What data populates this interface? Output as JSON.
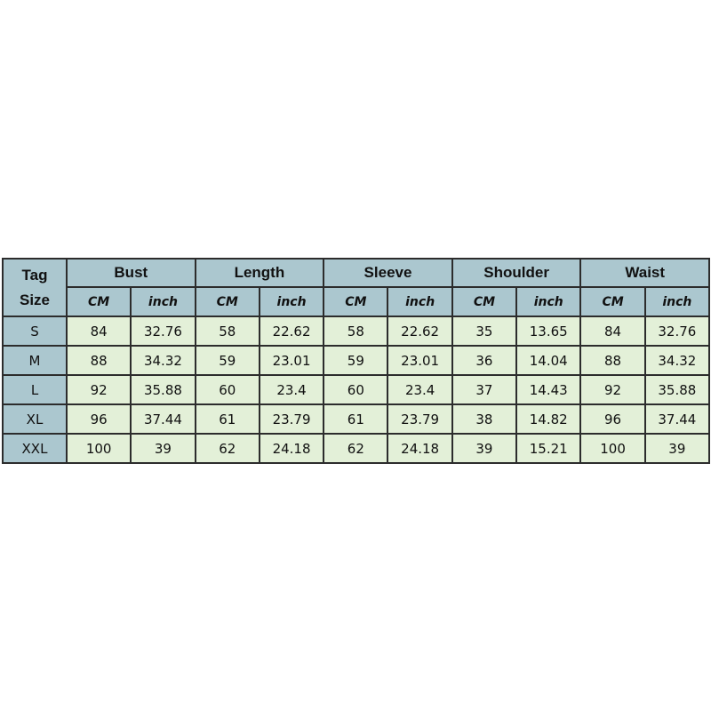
{
  "table": {
    "corner": "Tag Size",
    "groups": [
      {
        "name": "Bust",
        "units": [
          "CM",
          "inch"
        ]
      },
      {
        "name": "Length",
        "units": [
          "CM",
          "inch"
        ]
      },
      {
        "name": "Sleeve",
        "units": [
          "CM",
          "inch"
        ]
      },
      {
        "name": "Shoulder",
        "units": [
          "CM",
          "inch"
        ]
      },
      {
        "name": "Waist",
        "units": [
          "CM",
          "inch"
        ]
      }
    ],
    "rows": [
      {
        "size": "S",
        "cells": [
          "84",
          "32.76",
          "58",
          "22.62",
          "58",
          "22.62",
          "35",
          "13.65",
          "84",
          "32.76"
        ]
      },
      {
        "size": "M",
        "cells": [
          "88",
          "34.32",
          "59",
          "23.01",
          "59",
          "23.01",
          "36",
          "14.04",
          "88",
          "34.32"
        ]
      },
      {
        "size": "L",
        "cells": [
          "92",
          "35.88",
          "60",
          "23.4",
          "60",
          "23.4",
          "37",
          "14.43",
          "92",
          "35.88"
        ]
      },
      {
        "size": "XL",
        "cells": [
          "96",
          "37.44",
          "61",
          "23.79",
          "61",
          "23.79",
          "38",
          "14.82",
          "96",
          "37.44"
        ]
      },
      {
        "size": "XXL",
        "cells": [
          "100",
          "39",
          "62",
          "24.18",
          "62",
          "24.18",
          "39",
          "15.21",
          "100",
          "39"
        ]
      }
    ]
  }
}
